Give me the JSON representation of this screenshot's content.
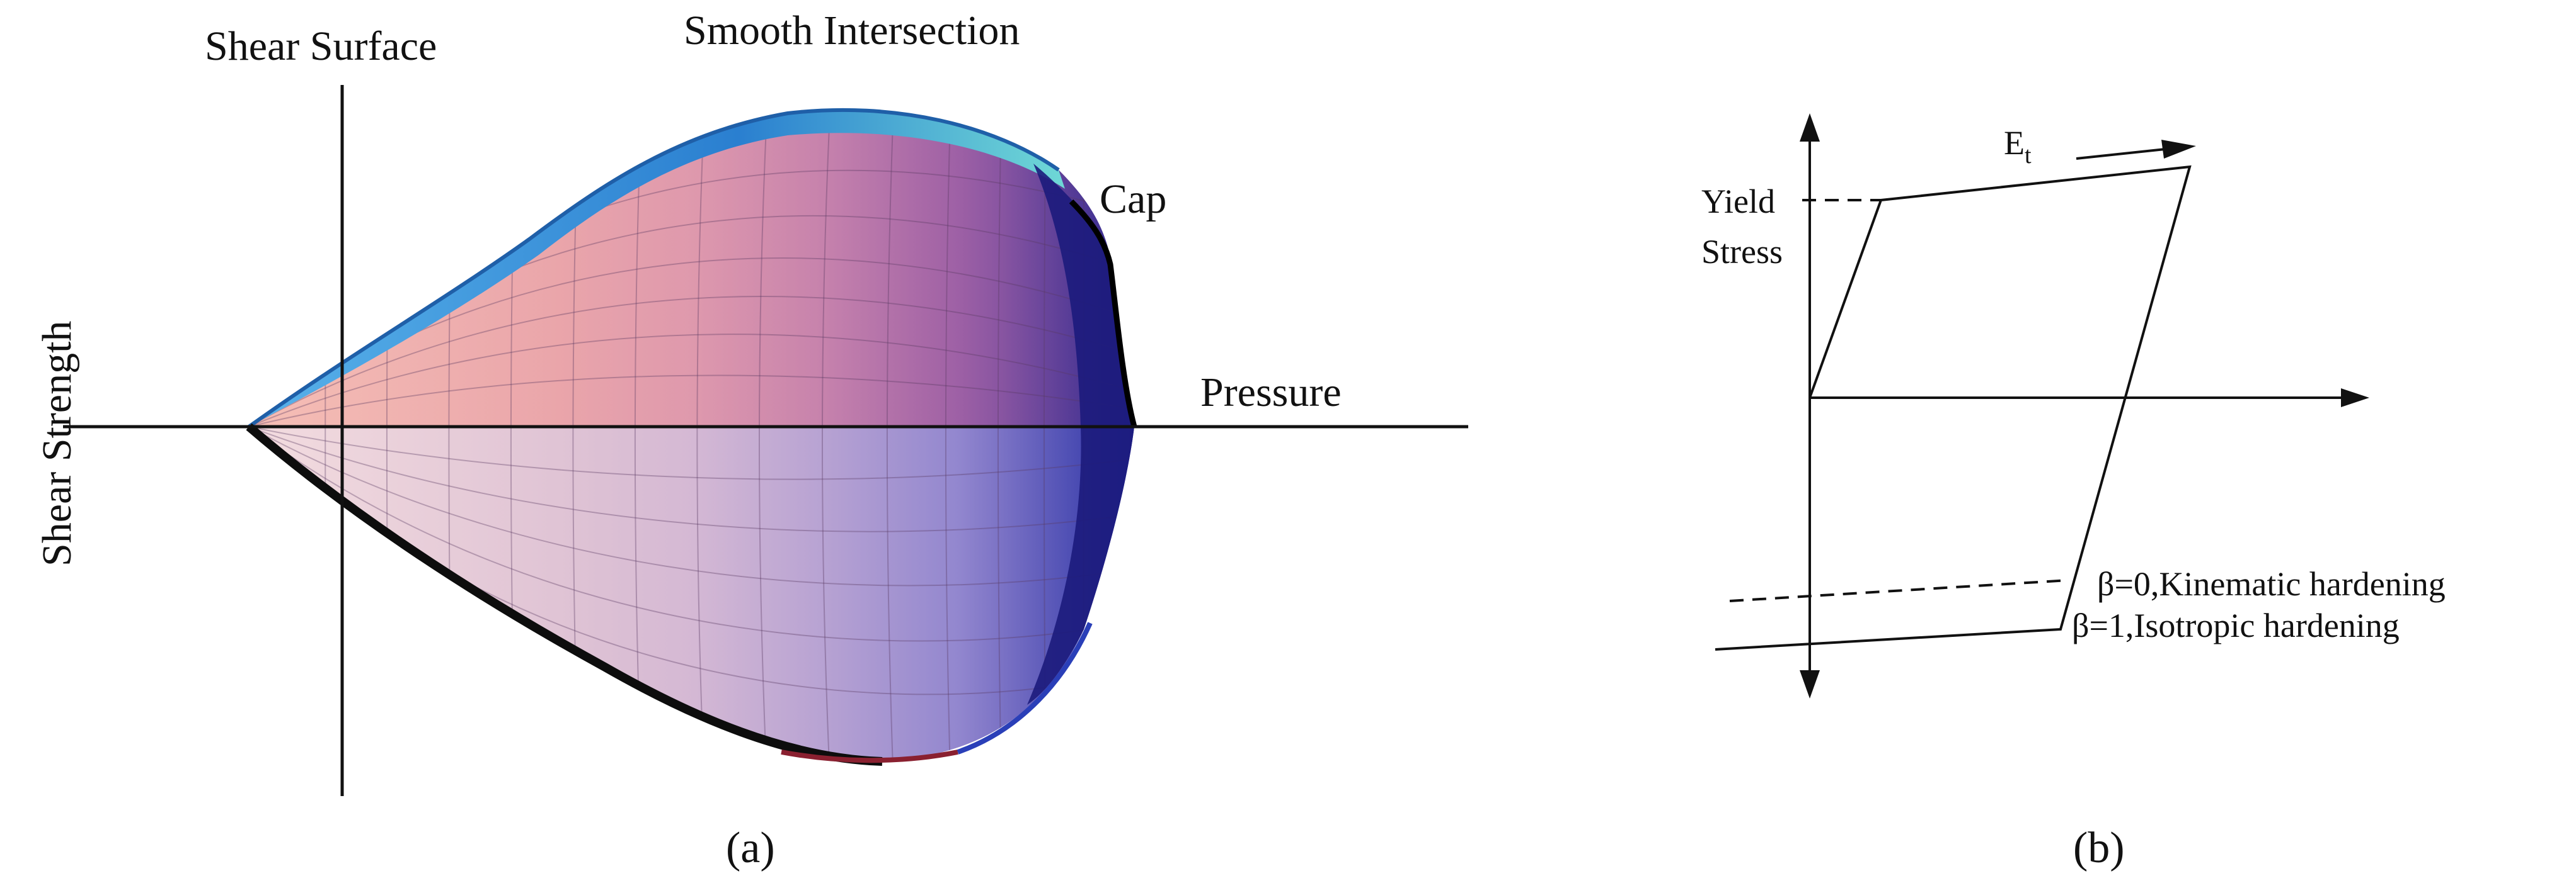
{
  "panel_a": {
    "labels": {
      "shear_surface": "Shear Surface",
      "smooth_intersection": "Smooth Intersection",
      "cap": "Cap",
      "pressure": "Pressure",
      "shear_strength": "Shear Strength"
    },
    "caption": "(a)",
    "colors": {
      "upper_rim": "#2f86d6",
      "upper_rim_light": "#7fd6e8",
      "cap_dark": "#1a1a7a",
      "surface_left": "#f2b9b5",
      "surface_mid": "#c98ab8",
      "surface_right": "#3b3aa6",
      "lower_edge": "#111111",
      "lower_rim": "#8a2030"
    }
  },
  "panel_b": {
    "labels": {
      "et_main": "E",
      "et_sub": "t",
      "yield_line1": "Yield",
      "yield_line2": "Stress",
      "beta0": "β=0,Kinematic hardening",
      "beta1": "β=1,Isotropic hardening"
    },
    "caption": "(b)"
  }
}
